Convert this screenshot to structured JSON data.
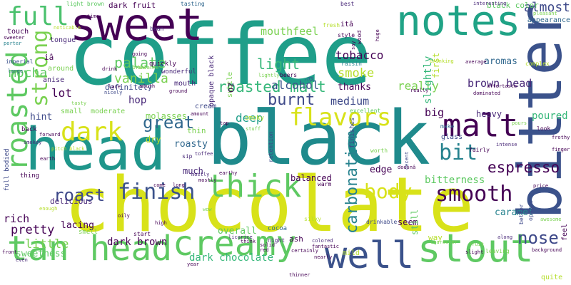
{
  "colors": {
    "background": "#ffffff",
    "palette": [
      "#440154",
      "#482878",
      "#3e4989",
      "#31688e",
      "#26828e",
      "#1f9e89",
      "#35b779",
      "#6ece58",
      "#b5de2b",
      "#fde725"
    ]
  },
  "words": [
    {
      "text": "coffee",
      "color": "#1f9e89",
      "vertical": false
    },
    {
      "text": "chocolate",
      "color": "#d8e219",
      "vertical": false
    },
    {
      "text": "black",
      "color": "#1f8a8c",
      "vertical": false
    },
    {
      "text": "head",
      "color": "#1f968b",
      "vertical": false
    },
    {
      "text": "bitter",
      "color": "#3b528b",
      "vertical": true
    },
    {
      "text": "sweet",
      "color": "#440154",
      "vertical": false
    },
    {
      "text": "notes",
      "color": "#20a386",
      "vertical": false
    },
    {
      "text": "stout",
      "color": "#5ec962",
      "vertical": false
    },
    {
      "text": "tan head",
      "color": "#5ec962",
      "vertical": false
    },
    {
      "text": "creamy",
      "color": "#5ec962",
      "vertical": false
    },
    {
      "text": "well",
      "color": "#3b528b",
      "vertical": false
    },
    {
      "text": "roasted",
      "color": "#5ec962",
      "vertical": true
    },
    {
      "text": "thick",
      "color": "#5ec962",
      "vertical": false
    },
    {
      "text": "malt",
      "color": "#440154",
      "vertical": false
    },
    {
      "text": "dark",
      "color": "#d8e219",
      "vertical": false
    },
    {
      "text": "flavors",
      "color": "#d8e219",
      "vertical": false
    },
    {
      "text": "strong",
      "color": "#7ad151",
      "vertical": true
    },
    {
      "text": "full",
      "color": "#4ac16d",
      "vertical": false
    },
    {
      "text": "finish",
      "color": "#3b528b",
      "vertical": false
    },
    {
      "text": "smooth",
      "color": "#440154",
      "vertical": false
    },
    {
      "text": "bit",
      "color": "#26828e",
      "vertical": false
    },
    {
      "text": "body",
      "color": "#d8e219",
      "vertical": false
    },
    {
      "text": "roasted malt",
      "color": "#35b779",
      "vertical": false
    },
    {
      "text": "almost",
      "color": "#3e4989",
      "vertical": false
    },
    {
      "text": "nose",
      "color": "#3e4989",
      "vertical": false
    },
    {
      "text": "espresso",
      "color": "#440154",
      "vertical": false
    },
    {
      "text": "great",
      "color": "#31688e",
      "vertical": false
    },
    {
      "text": "carbonation",
      "color": "#26828e",
      "vertical": true
    },
    {
      "text": "light",
      "color": "#35b779",
      "vertical": false
    },
    {
      "text": "roast",
      "color": "#3e4989",
      "vertical": false
    },
    {
      "text": "palate",
      "color": "#5ec962",
      "vertical": false
    },
    {
      "text": "burnt",
      "color": "#3e4989",
      "vertical": false
    },
    {
      "text": "brown head",
      "color": "#482878",
      "vertical": false
    },
    {
      "text": "mocha",
      "color": "#5ec962",
      "vertical": false
    },
    {
      "text": "tobacco",
      "color": "#440154",
      "vertical": false
    },
    {
      "text": "vanilla",
      "color": "#7ad151",
      "vertical": false
    },
    {
      "text": "alcohol",
      "color": "#3b528b",
      "vertical": false
    },
    {
      "text": "mouthfeel",
      "color": "#7ad151",
      "vertical": false
    },
    {
      "text": "smoke",
      "color": "#b5de2b",
      "vertical": false
    },
    {
      "text": "rich",
      "color": "#440154",
      "vertical": false
    },
    {
      "text": "pretty",
      "color": "#440154",
      "vertical": false
    },
    {
      "text": "little",
      "color": "#7ad151",
      "vertical": false
    },
    {
      "text": "sweetness",
      "color": "#5ec962",
      "vertical": false
    },
    {
      "text": "dark chocolate",
      "color": "#35b779",
      "vertical": false
    },
    {
      "text": "dark brown",
      "color": "#440154",
      "vertical": false
    },
    {
      "text": "lot",
      "color": "#440154",
      "vertical": false
    },
    {
      "text": "hint",
      "color": "#3e4989",
      "vertical": false
    },
    {
      "text": "hop",
      "color": "#482878",
      "vertical": false
    },
    {
      "text": "deep",
      "color": "#1f9e89",
      "vertical": false
    },
    {
      "text": "medium",
      "color": "#3e4989",
      "vertical": false
    },
    {
      "text": "really",
      "color": "#7ad151",
      "vertical": false
    },
    {
      "text": "big",
      "color": "#440154",
      "vertical": false
    },
    {
      "text": "heavy",
      "color": "#482878",
      "vertical": false
    },
    {
      "text": "poured",
      "color": "#35b779",
      "vertical": false
    },
    {
      "text": "bitterness",
      "color": "#5ec962",
      "vertical": false
    },
    {
      "text": "caramel",
      "color": "#26828e",
      "vertical": false
    },
    {
      "text": "aromas",
      "color": "#31688e",
      "vertical": false
    },
    {
      "text": "appearance",
      "color": "#31688e",
      "vertical": false
    },
    {
      "text": "black color",
      "color": "#5ec962",
      "vertical": false
    },
    {
      "text": "dark fruit",
      "color": "#440154",
      "vertical": false
    },
    {
      "text": "thanks",
      "color": "#440154",
      "vertical": false
    },
    {
      "text": "edge",
      "color": "#440154",
      "vertical": false
    },
    {
      "text": "delicious",
      "color": "#482878",
      "vertical": false
    },
    {
      "text": "lacing",
      "color": "#440154",
      "vertical": false
    },
    {
      "text": "overall",
      "color": "#5ec962",
      "vertical": false
    },
    {
      "text": "balanced",
      "color": "#440154",
      "vertical": false
    },
    {
      "text": "much",
      "color": "#482878",
      "vertical": false
    },
    {
      "text": "seem",
      "color": "#440154",
      "vertical": false
    },
    {
      "text": "still",
      "color": "#5ec962",
      "vertical": true
    },
    {
      "text": "slightly",
      "color": "#35b779",
      "vertical": true
    },
    {
      "text": "first",
      "color": "#b5de2b",
      "vertical": true
    },
    {
      "text": "roasty",
      "color": "#31688e",
      "vertical": false
    },
    {
      "text": "dry",
      "color": "#b5de2b",
      "vertical": false
    },
    {
      "text": "molasses",
      "color": "#7ad151",
      "vertical": false
    },
    {
      "text": "small",
      "color": "#7ad151",
      "vertical": false
    },
    {
      "text": "moderate",
      "color": "#7ad151",
      "vertical": false
    },
    {
      "text": "glass",
      "color": "#3e4989",
      "vertical": false
    },
    {
      "text": "cream",
      "color": "#3e4989",
      "vertical": false
    },
    {
      "text": "thin",
      "color": "#7ad151",
      "vertical": false
    },
    {
      "text": "definitely",
      "color": "#3e4989",
      "vertical": false
    },
    {
      "text": "mouth",
      "color": "#482878",
      "vertical": false
    },
    {
      "text": "opaque black",
      "color": "#482878",
      "vertical": true
    },
    {
      "text": "subtle",
      "color": "#7ad151",
      "vertical": true
    },
    {
      "text": "oz",
      "color": "#440154",
      "vertical": true
    },
    {
      "text": "à",
      "color": "#31688e",
      "vertical": true
    },
    {
      "text": "touch",
      "color": "#440154",
      "vertical": false
    },
    {
      "text": "tongue",
      "color": "#482878",
      "vertical": false
    },
    {
      "text": "iâ",
      "color": "#440154",
      "vertical": false
    },
    {
      "text": "itâ",
      "color": "#440154",
      "vertical": false
    },
    {
      "text": "around",
      "color": "#7ad151",
      "vertical": false
    },
    {
      "text": "anise",
      "color": "#482878",
      "vertical": false
    },
    {
      "text": "smoky",
      "color": "#b5de2b",
      "vertical": false
    },
    {
      "text": "quickly",
      "color": "#440154",
      "vertical": false
    },
    {
      "text": "wonderful",
      "color": "#482878",
      "vertical": false
    },
    {
      "text": "imperial",
      "color": "#3b528b",
      "vertical": false
    },
    {
      "text": "raisin",
      "color": "#26828e",
      "vertical": false
    },
    {
      "text": "excellent",
      "color": "#5ec962",
      "vertical": false
    },
    {
      "text": "fresh",
      "color": "#b5de2b",
      "vertical": false
    },
    {
      "text": "tasting",
      "color": "#31688e",
      "vertical": false
    },
    {
      "text": "best",
      "color": "#482878",
      "vertical": false
    },
    {
      "text": "bean",
      "color": "#482878",
      "vertical": false
    },
    {
      "text": "style",
      "color": "#440154",
      "vertical": false
    },
    {
      "text": "beers",
      "color": "#440154",
      "vertical": false
    },
    {
      "text": "light brown",
      "color": "#5ec962",
      "vertical": false
    },
    {
      "text": "make",
      "color": "#31688e",
      "vertical": false
    },
    {
      "text": "look",
      "color": "#440154",
      "vertical": false
    },
    {
      "text": "fairly",
      "color": "#440154",
      "vertical": false
    },
    {
      "text": "sip",
      "color": "#482878",
      "vertical": false
    },
    {
      "text": "finishes",
      "color": "#3e4989",
      "vertical": true
    },
    {
      "text": "retention",
      "color": "#3e4989",
      "vertical": true
    },
    {
      "text": "worth",
      "color": "#7ad151",
      "vertical": false
    },
    {
      "text": "silky",
      "color": "#b5de2b",
      "vertical": false
    },
    {
      "text": "drinkable",
      "color": "#3e4989",
      "vertical": false
    },
    {
      "text": "ash",
      "color": "#440154",
      "vertical": false
    },
    {
      "text": "cocoa",
      "color": "#31688e",
      "vertical": false
    },
    {
      "text": "night",
      "color": "#482878",
      "vertical": false
    },
    {
      "text": "mild",
      "color": "#b5de2b",
      "vertical": false
    },
    {
      "text": "way",
      "color": "#b5de2b",
      "vertical": false
    },
    {
      "text": "leaving",
      "color": "#7ad151",
      "vertical": false
    },
    {
      "text": "brew",
      "color": "#7ad151",
      "vertical": false
    },
    {
      "text": "complex",
      "color": "#b5de2b",
      "vertical": false
    },
    {
      "text": "drinking",
      "color": "#b5de2b",
      "vertical": false
    },
    {
      "text": "interesting",
      "color": "#482878",
      "vertical": false
    },
    {
      "text": "going",
      "color": "#440154",
      "vertical": false
    },
    {
      "text": "aftertaste",
      "color": "#440154",
      "vertical": false
    },
    {
      "text": "along",
      "color": "#482878",
      "vertical": false
    },
    {
      "text": "feel",
      "color": "#440154",
      "vertical": true
    },
    {
      "text": "better",
      "color": "#3e4989",
      "vertical": true
    },
    {
      "text": "opaque",
      "color": "#3e4989",
      "vertical": true
    },
    {
      "text": "background",
      "color": "#440154",
      "vertical": false
    },
    {
      "text": "quite",
      "color": "#b5de2b",
      "vertical": false
    },
    {
      "text": "full bodied",
      "color": "#3e4989",
      "vertical": true
    },
    {
      "text": "back",
      "color": "#440154",
      "vertical": false
    },
    {
      "text": "thing",
      "color": "#440154",
      "vertical": false
    },
    {
      "text": "smokey",
      "color": "#482878",
      "vertical": false
    },
    {
      "text": "forward",
      "color": "#440154",
      "vertical": false
    },
    {
      "text": "front",
      "color": "#440154",
      "vertical": false
    },
    {
      "text": "large",
      "color": "#31688e",
      "vertical": false
    },
    {
      "text": "sweeter",
      "color": "#440154",
      "vertical": false
    },
    {
      "text": "porter",
      "color": "#26828e",
      "vertical": false
    },
    {
      "text": "noticable",
      "color": "#b5de2b",
      "vertical": false
    },
    {
      "text": "time",
      "color": "#440154",
      "vertical": false
    },
    {
      "text": "lace",
      "color": "#440154",
      "vertical": false
    },
    {
      "text": "nicely",
      "color": "#3e4989",
      "vertical": false
    },
    {
      "text": "tasty",
      "color": "#7ad151",
      "vertical": false
    },
    {
      "text": "balance",
      "color": "#7ad151",
      "vertical": false
    },
    {
      "text": "ground",
      "color": "#440154",
      "vertical": false
    },
    {
      "text": "amount",
      "color": "#440154",
      "vertical": false
    },
    {
      "text": "toffee",
      "color": "#482878",
      "vertical": false
    },
    {
      "text": "mostly",
      "color": "#440154",
      "vertical": false
    },
    {
      "text": "earthy",
      "color": "#440154",
      "vertical": false
    },
    {
      "text": "tap",
      "color": "#440154",
      "vertical": false
    },
    {
      "text": "stuff",
      "color": "#7ad151",
      "vertical": false
    },
    {
      "text": "decent",
      "color": "#3e4989",
      "vertical": true
    },
    {
      "text": "doesnâ",
      "color": "#440154",
      "vertical": false
    },
    {
      "text": "intense",
      "color": "#482878",
      "vertical": false
    },
    {
      "text": "finger",
      "color": "#440154",
      "vertical": false
    },
    {
      "text": "frothy",
      "color": "#440154",
      "vertical": false
    },
    {
      "text": "price",
      "color": "#440154",
      "vertical": false
    },
    {
      "text": "fruit",
      "color": "#7ad151",
      "vertical": false
    },
    {
      "text": "slight",
      "color": "#440154",
      "vertical": false
    },
    {
      "text": "fantastic",
      "color": "#440154",
      "vertical": false
    },
    {
      "text": "nearly",
      "color": "#440154",
      "vertical": false
    },
    {
      "text": "thinner",
      "color": "#440154",
      "vertical": false
    },
    {
      "text": "colored",
      "color": "#482878",
      "vertical": false
    },
    {
      "text": "certainly",
      "color": "#440154",
      "vertical": false
    },
    {
      "text": "licorice",
      "color": "#482878",
      "vertical": false
    },
    {
      "text": "red",
      "color": "#440154",
      "vertical": false
    },
    {
      "text": "think",
      "color": "#440154",
      "vertical": false
    },
    {
      "text": "solid",
      "color": "#440154",
      "vertical": false
    },
    {
      "text": "wow",
      "color": "#7ad151",
      "vertical": false
    },
    {
      "text": "high",
      "color": "#440154",
      "vertical": false
    },
    {
      "text": "start",
      "color": "#440154",
      "vertical": false
    },
    {
      "text": "smell",
      "color": "#7ad151",
      "vertical": false
    },
    {
      "text": "oily",
      "color": "#440154",
      "vertical": false
    },
    {
      "text": "even",
      "color": "#482878",
      "vertical": false
    },
    {
      "text": "enough",
      "color": "#b5de2b",
      "vertical": false
    },
    {
      "text": "year",
      "color": "#440154",
      "vertical": false
    },
    {
      "text": "come",
      "color": "#440154",
      "vertical": false
    },
    {
      "text": "long",
      "color": "#440154",
      "vertical": false
    },
    {
      "text": "pitch black",
      "color": "#b5de2b",
      "vertical": false
    },
    {
      "text": "earth",
      "color": "#440154",
      "vertical": false
    },
    {
      "text": "say",
      "color": "#440154",
      "vertical": true
    },
    {
      "text": "huge",
      "color": "#440154",
      "vertical": true
    },
    {
      "text": "wood",
      "color": "#440154",
      "vertical": true
    },
    {
      "text": "pleasant",
      "color": "#7ad151",
      "vertical": false
    },
    {
      "text": "drink",
      "color": "#440154",
      "vertical": false
    },
    {
      "text": "pours",
      "color": "#7ad151",
      "vertical": false
    },
    {
      "text": "average",
      "color": "#440154",
      "vertical": false
    },
    {
      "text": "dominated",
      "color": "#440154",
      "vertical": false
    },
    {
      "text": "lightly",
      "color": "#7ad151",
      "vertical": false
    },
    {
      "text": "mostly",
      "color": "#482878",
      "vertical": false
    },
    {
      "text": "mouth",
      "color": "#440154",
      "vertical": false
    },
    {
      "text": "warm",
      "color": "#440154",
      "vertical": false
    },
    {
      "text": "character",
      "color": "#7ad151",
      "vertical": false
    },
    {
      "text": "awesome",
      "color": "#7ad151",
      "vertical": false
    },
    {
      "text": "really",
      "color": "#440154",
      "vertical": false
    }
  ]
}
